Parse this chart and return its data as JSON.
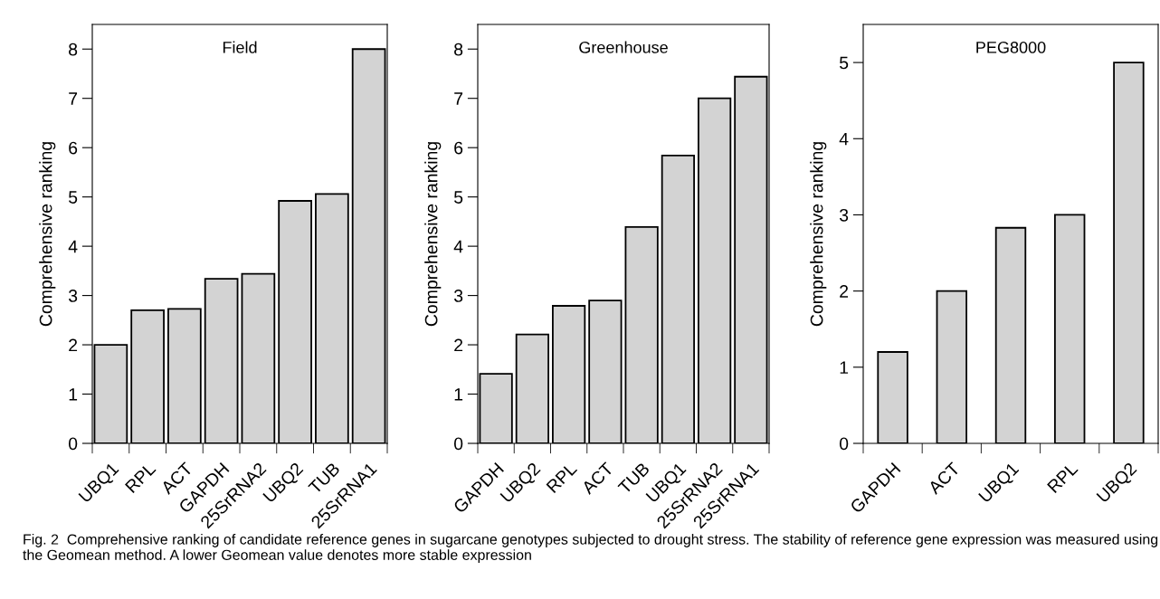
{
  "chart_data": [
    {
      "type": "bar",
      "title": "Field",
      "ylabel": "Comprehensive ranking",
      "categories": [
        "UBQ1",
        "RPL",
        "ACT",
        "GAPDH",
        "25SrRNA2",
        "UBQ2",
        "TUB",
        "25SrRNA1"
      ],
      "values": [
        2.0,
        2.7,
        2.73,
        3.34,
        3.44,
        4.92,
        5.06,
        8.0
      ],
      "color": "#d3d3d3",
      "ylim": [
        0,
        8.5
      ],
      "yticks": [
        0,
        1,
        2,
        3,
        4,
        5,
        6,
        7,
        8
      ],
      "grid": false,
      "annotations": [
        "Fig. 2  Comprehensive ranking of candidate reference genes in sugarcane genotypes subjected to drought stress. The stability of reference gene expression was measured using the Geomean method. A lower Geomean value denotes more stable expression"
      ]
    },
    {
      "type": "bar",
      "title": "Greenhouse",
      "ylabel": "Comprehensive ranking",
      "categories": [
        "GAPDH",
        "UBQ2",
        "RPL",
        "ACT",
        "TUB",
        "UBQ1",
        "25SrRNA2",
        "25SrRNA1"
      ],
      "values": [
        1.41,
        2.21,
        2.79,
        2.9,
        4.39,
        5.84,
        7.0,
        7.44
      ],
      "color": "#d3d3d3",
      "ylim": [
        0,
        8.5
      ],
      "yticks": [
        0,
        1,
        2,
        3,
        4,
        5,
        6,
        7,
        8
      ],
      "grid": false
    },
    {
      "type": "bar",
      "title": "PEG8000",
      "ylabel": "Comprehensive ranking",
      "categories": [
        "GAPDH",
        "ACT",
        "UBQ1",
        "RPL",
        "UBQ2"
      ],
      "values": [
        1.2,
        2.0,
        2.83,
        3.0,
        5.0
      ],
      "color": "#d3d3d3",
      "ylim": [
        0,
        5.5
      ],
      "yticks": [
        0,
        1,
        2,
        3,
        4,
        5
      ],
      "grid": false
    }
  ]
}
